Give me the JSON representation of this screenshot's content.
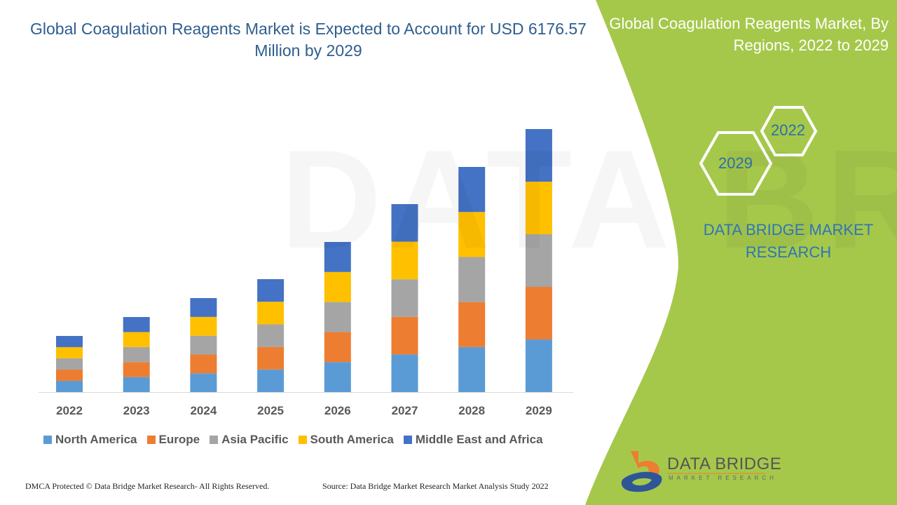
{
  "title": "Global Coagulation Reagents Market is Expected to Account for USD 6176.57 Million by 2029",
  "side_panel": {
    "title": "Global Coagulation Reagents Market, By Regions, 2022 to 2029",
    "hex_years": [
      "2022",
      "2029"
    ],
    "brand": "DATA BRIDGE MARKET RESEARCH",
    "colors": {
      "panel": "#a5c84b",
      "hex_stroke": "#ffffff"
    }
  },
  "logo": {
    "name": "DATA BRIDGE",
    "tagline": "MARKET RESEARCH"
  },
  "footer": {
    "left": "DMCA Protected © Data Bridge Market Research- All Rights Reserved.",
    "right": "Source: Data Bridge Market Research Market Analysis Study 2022"
  },
  "watermark": "DATA BRIDGE",
  "chart_data": {
    "type": "bar",
    "stacked": true,
    "title": "Global Coagulation Reagents Market is Expected to Account for USD 6176.57 Million by 2029",
    "xlabel": "",
    "ylabel": "",
    "unit": "USD Million (estimated from bar heights)",
    "categories": [
      "2022",
      "2023",
      "2024",
      "2025",
      "2026",
      "2027",
      "2028",
      "2029"
    ],
    "series": [
      {
        "name": "North America",
        "color": "#5b9bd5",
        "values": [
          264,
          352,
          441,
          530,
          705,
          883,
          1057,
          1235
        ]
      },
      {
        "name": "Europe",
        "color": "#ed7d31",
        "values": [
          264,
          352,
          441,
          530,
          705,
          883,
          1057,
          1235
        ]
      },
      {
        "name": "Asia Pacific",
        "color": "#a5a5a5",
        "values": [
          264,
          352,
          441,
          530,
          705,
          883,
          1057,
          1236
        ]
      },
      {
        "name": "South America",
        "color": "#ffc000",
        "values": [
          263,
          353,
          442,
          531,
          705,
          883,
          1058,
          1235
        ]
      },
      {
        "name": "Middle East and Africa",
        "color": "#4472c4",
        "values": [
          263,
          353,
          442,
          531,
          705,
          882,
          1058,
          1235.57
        ]
      }
    ],
    "ylim": [
      0,
      6200
    ],
    "grid": false,
    "legend": "bottom"
  }
}
